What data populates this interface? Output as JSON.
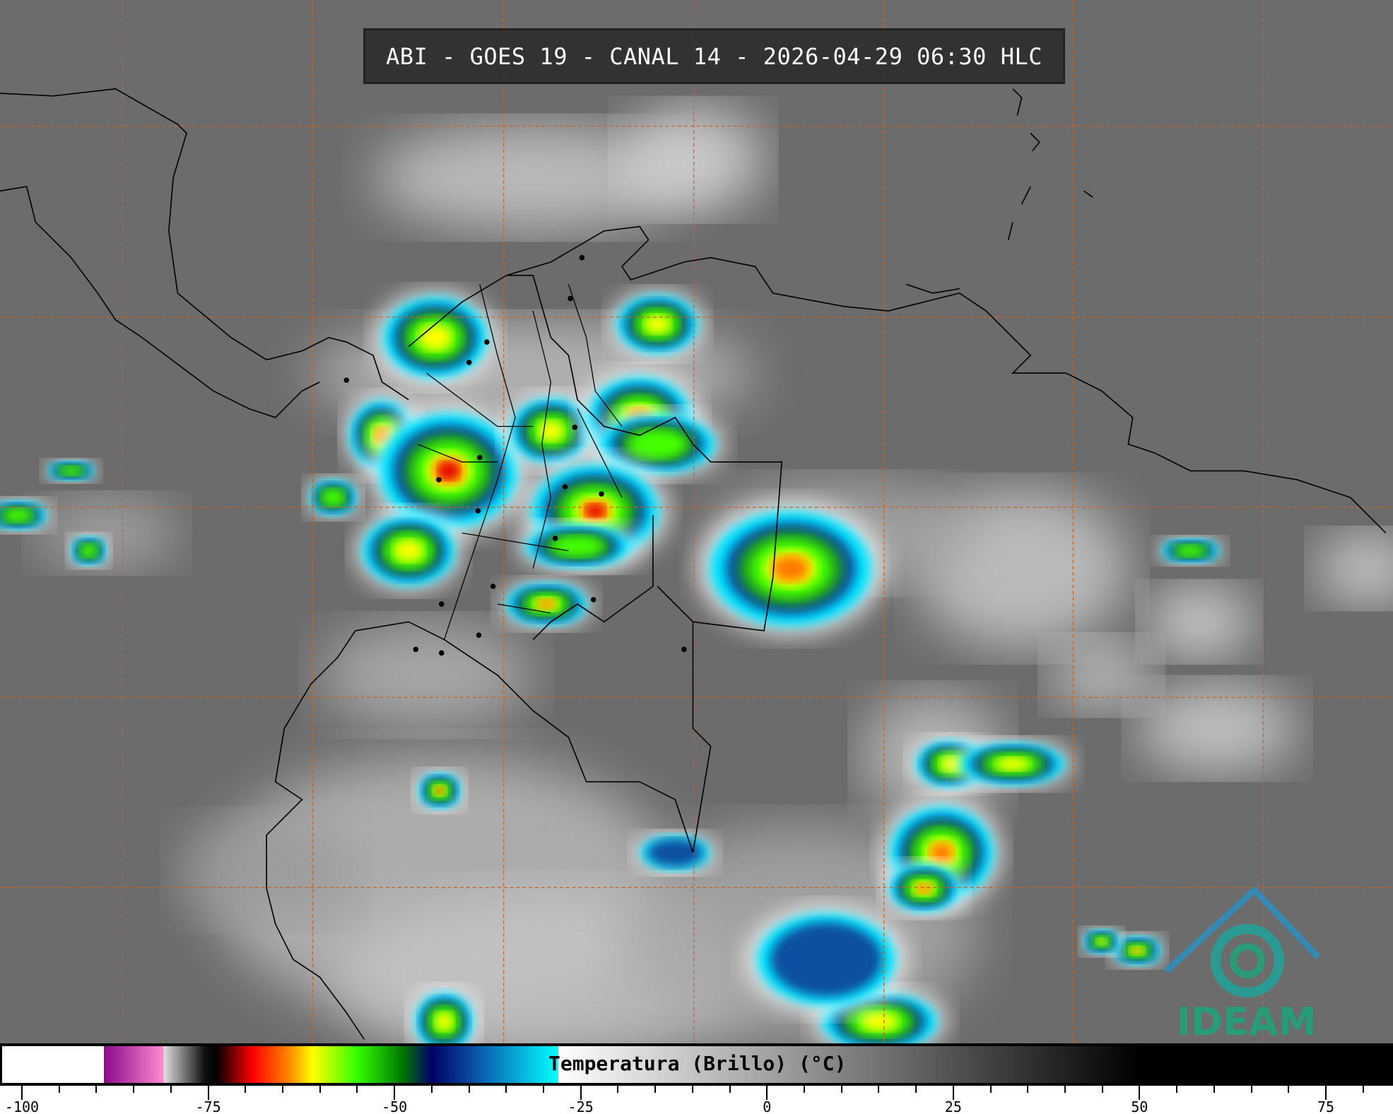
{
  "title": "ABI - GOES 19 - CANAL 14 - 2026-04-29 06:30 HLC",
  "logo_text": "IDEAM",
  "colorbar": {
    "label": "Temperatura (Brillo) (°C)",
    "range": [
      -100,
      83
    ],
    "ticks": [
      "-100",
      "-75",
      "-50",
      "-25",
      "0",
      "25",
      "50",
      "75"
    ],
    "tick_values": [
      -100,
      -75,
      -50,
      -25,
      0,
      25,
      50,
      75
    ],
    "minor_step": 5,
    "stops": [
      {
        "t": -100,
        "color": "#ffffff"
      },
      {
        "t": -89,
        "color": "#ffffff"
      },
      {
        "t": -89,
        "color": "#8b0a8b"
      },
      {
        "t": -81,
        "color": "#ff8ad0"
      },
      {
        "t": -81,
        "color": "#e0e0e0"
      },
      {
        "t": -75.5,
        "color": "#111111"
      },
      {
        "t": -74,
        "color": "#000000"
      },
      {
        "t": -69,
        "color": "#ff0000"
      },
      {
        "t": -64,
        "color": "#ff8c00"
      },
      {
        "t": -61,
        "color": "#ffff00"
      },
      {
        "t": -55,
        "color": "#33ff00"
      },
      {
        "t": -49,
        "color": "#007a00"
      },
      {
        "t": -45,
        "color": "#000066"
      },
      {
        "t": -38,
        "color": "#0a64b4"
      },
      {
        "t": -28,
        "color": "#00ffff"
      },
      {
        "t": -28,
        "color": "#ffffff"
      },
      {
        "t": 50,
        "color": "#000000"
      },
      {
        "t": 83,
        "color": "#000000"
      }
    ]
  },
  "colors": {
    "grid": "#c8641e",
    "border": "#000000",
    "background": "#6e6e6e",
    "logo": "#1fa37a"
  }
}
